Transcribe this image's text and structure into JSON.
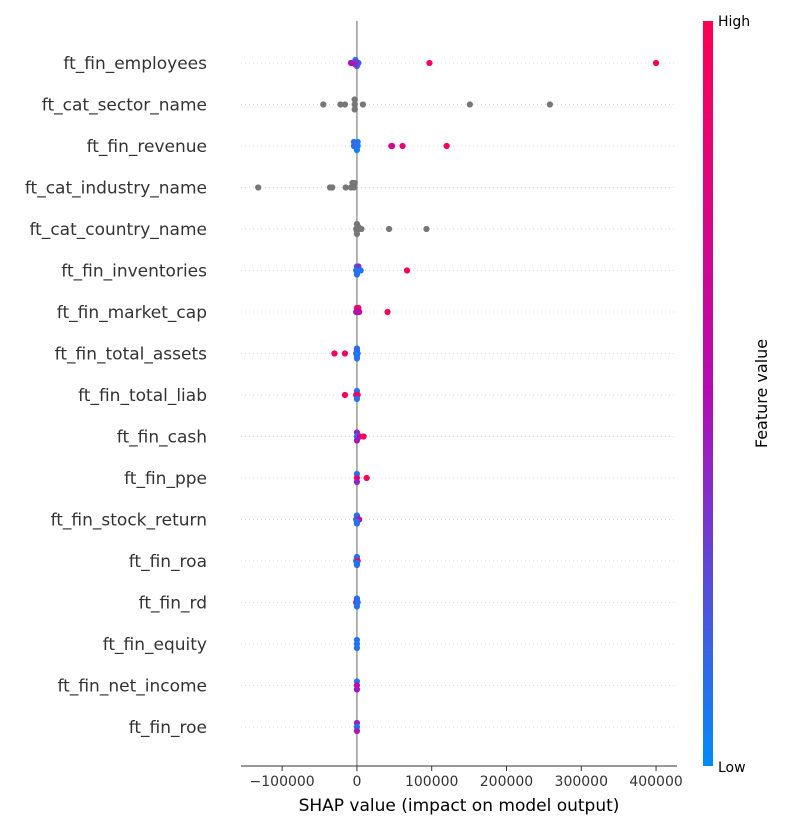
{
  "chart_data": {
    "type": "scatter",
    "subtype": "shap-beeswarm",
    "title": "",
    "xlabel": "SHAP value (impact on model output)",
    "xlim": [
      -155000,
      428000
    ],
    "xticks": [
      -100000,
      0,
      100000,
      200000,
      300000,
      400000
    ],
    "xtick_labels": [
      "−100000",
      "0",
      "100000",
      "200000",
      "300000",
      "400000"
    ],
    "colorbar": {
      "title": "Feature value",
      "high_label": "High",
      "low_label": "Low",
      "low_color": "#008bfb",
      "mid_color": "#b40cb4",
      "high_color": "#ff0052",
      "missing_color": "#777777"
    },
    "features": [
      {
        "name": "ft_fin_employees",
        "points": [
          [
            0,
            0.2,
            0.3
          ],
          [
            -2000,
            0.1,
            -0.3
          ],
          [
            2000,
            0.15,
            0.0
          ],
          [
            -1000,
            0.3,
            -0.1
          ],
          [
            -3000,
            0.4,
            0.1
          ],
          [
            -8000,
            0.45,
            0.0
          ],
          [
            97000,
            0.9,
            0.0
          ],
          [
            400000,
            1.0,
            0.0
          ]
        ]
      },
      {
        "name": "ft_cat_sector_name",
        "points": [
          [
            -3000,
            null,
            -0.5
          ],
          [
            -22000,
            null,
            0.0
          ],
          [
            -16000,
            null,
            0.0
          ],
          [
            -3000,
            null,
            0.0
          ],
          [
            -45000,
            null,
            0.0
          ],
          [
            8000,
            null,
            0.0
          ],
          [
            -3000,
            null,
            0.5
          ],
          [
            151000,
            null,
            0.0
          ],
          [
            258000,
            null,
            0.0
          ]
        ]
      },
      {
        "name": "ft_fin_revenue",
        "points": [
          [
            -4000,
            0.1,
            -0.4
          ],
          [
            1000,
            0.1,
            -0.4
          ],
          [
            -4000,
            0.15,
            0.0
          ],
          [
            1000,
            0.1,
            0.0
          ],
          [
            0,
            0.05,
            0.4
          ],
          [
            47000,
            0.6,
            0.0
          ],
          [
            46000,
            0.7,
            0.0
          ],
          [
            61000,
            0.8,
            0.0
          ],
          [
            120000,
            0.95,
            0.0
          ]
        ]
      },
      {
        "name": "ft_cat_industry_name",
        "points": [
          [
            -132000,
            null,
            0.0
          ],
          [
            -36000,
            null,
            0.0
          ],
          [
            -33000,
            null,
            0.0
          ],
          [
            -15000,
            null,
            0.0
          ],
          [
            -8000,
            null,
            0.0
          ],
          [
            -4000,
            null,
            0.0
          ],
          [
            -6000,
            null,
            -0.45
          ],
          [
            -3000,
            null,
            -0.45
          ]
        ]
      },
      {
        "name": "ft_cat_country_name",
        "points": [
          [
            0,
            null,
            -0.5
          ],
          [
            0,
            null,
            0.5
          ],
          [
            2000,
            null,
            -0.2
          ],
          [
            0,
            null,
            0.2
          ],
          [
            6000,
            null,
            0.0
          ],
          [
            43000,
            null,
            0.0
          ],
          [
            93000,
            null,
            0.0
          ],
          [
            -1000,
            null,
            0.0
          ]
        ]
      },
      {
        "name": "ft_fin_inventories",
        "points": [
          [
            0,
            0.15,
            -0.4
          ],
          [
            2000,
            0.35,
            -0.4
          ],
          [
            -1000,
            0.1,
            0.0
          ],
          [
            5000,
            0.1,
            0.0
          ],
          [
            0,
            0.1,
            0.4
          ],
          [
            67000,
            0.95,
            0.0
          ]
        ]
      },
      {
        "name": "ft_fin_market_cap",
        "points": [
          [
            0,
            0.7,
            -0.4
          ],
          [
            2000,
            0.9,
            -0.4
          ],
          [
            -1000,
            0.4,
            0.0
          ],
          [
            0,
            0.5,
            0.0
          ],
          [
            3000,
            0.6,
            0.0
          ],
          [
            41000,
            0.95,
            0.0
          ]
        ]
      },
      {
        "name": "ft_fin_total_assets",
        "points": [
          [
            0,
            0.1,
            -0.5
          ],
          [
            0,
            0.15,
            -0.25
          ],
          [
            -30000,
            0.95,
            0.0
          ],
          [
            -16000,
            0.9,
            0.0
          ],
          [
            -1000,
            0.1,
            0.0
          ],
          [
            1000,
            0.1,
            0.0
          ],
          [
            0,
            0.1,
            0.25
          ],
          [
            0,
            0.1,
            0.5
          ]
        ]
      },
      {
        "name": "ft_fin_total_liab",
        "points": [
          [
            0,
            0.1,
            -0.4
          ],
          [
            -16000,
            0.95,
            0.0
          ],
          [
            -1000,
            0.6,
            0.0
          ],
          [
            1000,
            0.9,
            0.0
          ],
          [
            0,
            0.1,
            0.4
          ]
        ]
      },
      {
        "name": "ft_fin_cash",
        "points": [
          [
            0,
            0.4,
            -0.4
          ],
          [
            0,
            0.1,
            0.0
          ],
          [
            4000,
            0.7,
            0.0
          ],
          [
            9000,
            0.95,
            0.0
          ],
          [
            0,
            0.45,
            0.4
          ]
        ]
      },
      {
        "name": "ft_fin_ppe",
        "points": [
          [
            0,
            0.1,
            -0.4
          ],
          [
            0,
            0.85,
            0.0
          ],
          [
            13000,
            0.95,
            0.0
          ],
          [
            0,
            0.4,
            0.4
          ]
        ]
      },
      {
        "name": "ft_fin_stock_return",
        "points": [
          [
            0,
            0.1,
            -0.4
          ],
          [
            0,
            0.15,
            -0.2
          ],
          [
            -1000,
            0.1,
            0.0
          ],
          [
            1000,
            0.3,
            0.0
          ],
          [
            3000,
            0.7,
            0.0
          ],
          [
            0,
            0.1,
            0.2
          ],
          [
            0,
            0.1,
            0.4
          ]
        ]
      },
      {
        "name": "ft_fin_roa",
        "points": [
          [
            0,
            0.1,
            -0.4
          ],
          [
            0,
            0.1,
            -0.2
          ],
          [
            -1000,
            0.1,
            0.0
          ],
          [
            1000,
            0.95,
            0.0
          ],
          [
            0,
            0.1,
            0.2
          ],
          [
            0,
            0.1,
            0.4
          ]
        ]
      },
      {
        "name": "ft_fin_rd",
        "points": [
          [
            0,
            0.1,
            -0.4
          ],
          [
            0,
            0.1,
            -0.2
          ],
          [
            -1000,
            0.4,
            0.0
          ],
          [
            1000,
            0.1,
            0.0
          ],
          [
            0,
            0.1,
            0.4
          ]
        ]
      },
      {
        "name": "ft_fin_equity",
        "points": [
          [
            0,
            0.1,
            -0.4
          ],
          [
            0,
            0.1,
            0.0
          ],
          [
            0,
            0.1,
            0.4
          ]
        ]
      },
      {
        "name": "ft_fin_net_income",
        "points": [
          [
            0,
            0.1,
            -0.4
          ],
          [
            0,
            0.6,
            0.0
          ],
          [
            0,
            0.45,
            0.4
          ]
        ]
      },
      {
        "name": "ft_fin_roe",
        "points": [
          [
            0,
            0.4,
            -0.4
          ],
          [
            0,
            0.1,
            0.0
          ],
          [
            0,
            0.45,
            0.4
          ]
        ]
      }
    ]
  }
}
